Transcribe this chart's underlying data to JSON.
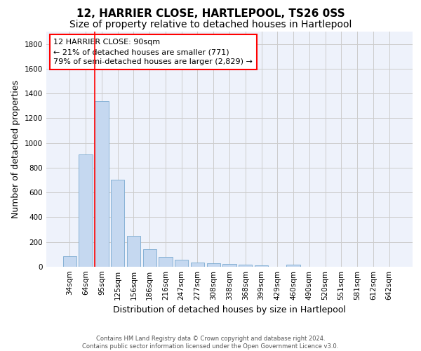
{
  "title": "12, HARRIER CLOSE, HARTLEPOOL, TS26 0SS",
  "subtitle": "Size of property relative to detached houses in Hartlepool",
  "xlabel": "Distribution of detached houses by size in Hartlepool",
  "ylabel": "Number of detached properties",
  "categories": [
    "34sqm",
    "64sqm",
    "95sqm",
    "125sqm",
    "156sqm",
    "186sqm",
    "216sqm",
    "247sqm",
    "277sqm",
    "308sqm",
    "338sqm",
    "368sqm",
    "399sqm",
    "429sqm",
    "460sqm",
    "490sqm",
    "520sqm",
    "551sqm",
    "581sqm",
    "612sqm",
    "642sqm"
  ],
  "values": [
    85,
    905,
    1340,
    705,
    248,
    143,
    82,
    55,
    32,
    27,
    20,
    15,
    10,
    0,
    18,
    0,
    0,
    0,
    0,
    0,
    0
  ],
  "bar_color": "#c5d8f0",
  "bar_edge_color": "#7aaad0",
  "property_bar_index": 2,
  "vline_color": "red",
  "annotation_text": "12 HARRIER CLOSE: 90sqm\n← 21% of detached houses are smaller (771)\n79% of semi-detached houses are larger (2,829) →",
  "annotation_box_color": "white",
  "annotation_box_edge_color": "red",
  "ylim": [
    0,
    1900
  ],
  "yticks": [
    0,
    200,
    400,
    600,
    800,
    1000,
    1200,
    1400,
    1600,
    1800
  ],
  "grid_color": "#cccccc",
  "background_color": "#eef2fb",
  "footer_text": "Contains HM Land Registry data © Crown copyright and database right 2024.\nContains public sector information licensed under the Open Government Licence v3.0.",
  "title_fontsize": 11,
  "subtitle_fontsize": 10,
  "xlabel_fontsize": 9,
  "ylabel_fontsize": 9,
  "tick_fontsize": 7.5,
  "annotation_fontsize": 8,
  "footer_fontsize": 6
}
